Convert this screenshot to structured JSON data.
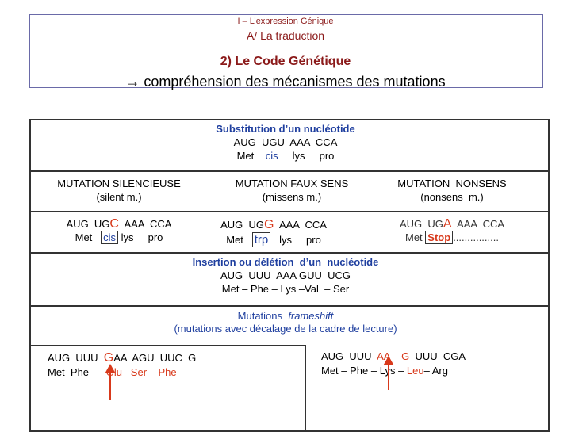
{
  "header": {
    "chapter": "I – L’expression Génique",
    "section": "A/ La traduction",
    "subsection": "2) Le Code Génétique",
    "heading": "→ compréhension des mécanismes des mutations"
  },
  "substitution": {
    "title": "Substitution d’un nucléotide",
    "codons": "AUG  UGU  AAA  CCA",
    "amino_acids": [
      "Met",
      "cis",
      "lys",
      "pro"
    ]
  },
  "columns": [
    {
      "title": "MUTATION SILENCIEUSE",
      "subtitle": "(silent m.)",
      "codons": [
        "AUG  UG",
        "C",
        "  AAA  CCA"
      ],
      "amino_acids": [
        "Met",
        "cis",
        "lys",
        "pro"
      ]
    },
    {
      "title": "MUTATION FAUX SENS",
      "subtitle": "(missens m.)",
      "codons": [
        "AUG  UG",
        "G",
        "  AAA  CCA"
      ],
      "amino_acids": [
        "Met",
        "trp",
        "lys",
        "pro"
      ]
    },
    {
      "title": "MUTATION  NONSENS",
      "subtitle": "(nonsens  m.)",
      "codons": [
        "AUG  UG",
        "A",
        "  AAA  CCA"
      ],
      "amino_acids": [
        "Met",
        "Stop",
        "................"
      ]
    }
  ],
  "insertion": {
    "title": "Insertion ou délétion  d’un  nucléotide",
    "codons": "AUG  UUU  AAA GUU  UCG",
    "amino_acids": "Met – Phe – Lys –Val  – Ser"
  },
  "frameshift": {
    "title_parts": [
      "Mutations  ",
      "frameshift"
    ],
    "subtitle": "(mutations avec décalage de la cadre de lecture)",
    "insertion_example": {
      "codons": [
        "AUG  UUU  ",
        "G",
        "AA  AGU  UUC  G"
      ],
      "amino_acids": [
        "Met–Phe – ",
        "Glu –Ser – Phe"
      ]
    },
    "deletion_example": {
      "codons": [
        "AUG  UUU  ",
        "AA – G",
        "  UUU  CGA"
      ],
      "amino_acids": [
        "Met – Phe – Lys – ",
        "Leu",
        "– Arg"
      ]
    }
  }
}
